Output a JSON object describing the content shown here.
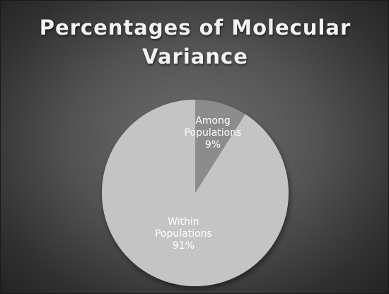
{
  "chart_data": {
    "type": "pie",
    "title_lines": [
      "Percentages of Molecular",
      "Variance"
    ],
    "slices": [
      {
        "label_lines": [
          "Among",
          "Populations"
        ],
        "value": 9,
        "value_label": "9%",
        "color": "#8c8c8c"
      },
      {
        "label_lines": [
          "Within",
          "Populations"
        ],
        "value": 91,
        "value_label": "91%",
        "color": "#c4c4c4"
      }
    ],
    "start_angle_deg": 0,
    "direction": "clockwise",
    "legend": "none",
    "colors": {
      "background": "#444444",
      "title": "#f2f2f2",
      "slice_label": "#ffffff"
    }
  }
}
